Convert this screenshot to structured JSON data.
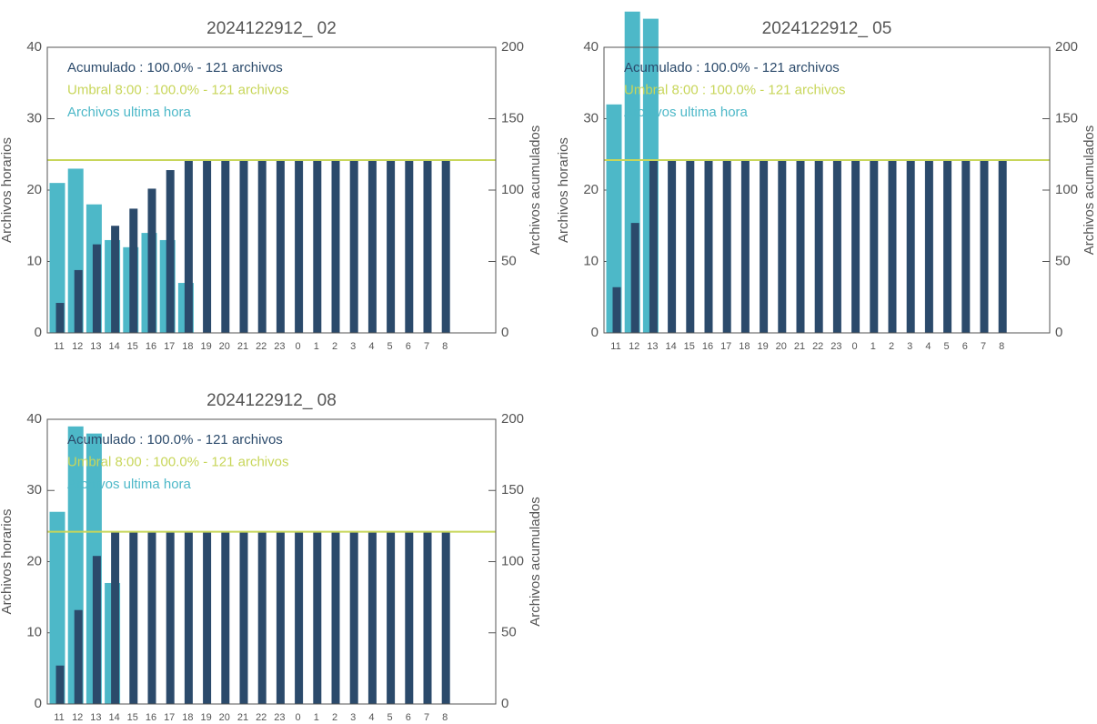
{
  "chart_data": [
    {
      "type": "bar",
      "title": "2024122912_ 02",
      "ylabel": "Archivos horarios",
      "y2label": "Archivos acumulados",
      "categories": [
        "11",
        "12",
        "13",
        "14",
        "15",
        "16",
        "17",
        "18",
        "19",
        "20",
        "21",
        "22",
        "23",
        "0",
        "1",
        "2",
        "3",
        "4",
        "5",
        "6",
        "7",
        "8"
      ],
      "series": [
        {
          "name": "Acumulado : 100.0% - 121 archivos",
          "color": "#2b4a6b",
          "axis": "y2",
          "values": [
            21,
            44,
            62,
            75,
            87,
            101,
            114,
            121,
            121,
            121,
            121,
            121,
            121,
            121,
            121,
            121,
            121,
            121,
            121,
            121,
            121,
            121
          ]
        },
        {
          "name": "Archivos ultima hora",
          "color": "#4db8c8",
          "values": [
            21,
            23,
            18,
            13,
            12,
            14,
            13,
            7,
            null,
            null,
            null,
            null,
            null,
            null,
            null,
            null,
            null,
            null,
            null,
            null,
            null,
            null
          ]
        }
      ],
      "hlines": [
        {
          "name": "Umbral 8:00 : 100.0% - 121 archivos",
          "color": "#c8d65a",
          "value": 121,
          "axis": "y2"
        }
      ],
      "ylim": [
        0,
        40
      ],
      "yticks": [
        0,
        10,
        20,
        30,
        40
      ],
      "y2lim": [
        0,
        200
      ],
      "y2ticks": [
        0,
        50,
        100,
        150,
        200
      ]
    },
    {
      "type": "bar",
      "title": "2024122912_ 05",
      "ylabel": "Archivos horarios",
      "y2label": "Archivos acumulados",
      "categories": [
        "11",
        "12",
        "13",
        "14",
        "15",
        "16",
        "17",
        "18",
        "19",
        "20",
        "21",
        "22",
        "23",
        "0",
        "1",
        "2",
        "3",
        "4",
        "5",
        "6",
        "7",
        "8"
      ],
      "series": [
        {
          "name": "Acumulado : 100.0% - 121 archivos",
          "color": "#2b4a6b",
          "axis": "y2",
          "values": [
            32,
            77,
            121,
            121,
            121,
            121,
            121,
            121,
            121,
            121,
            121,
            121,
            121,
            121,
            121,
            121,
            121,
            121,
            121,
            121,
            121,
            121
          ]
        },
        {
          "name": "Archivos ultima hora",
          "color": "#4db8c8",
          "values": [
            32,
            45,
            44,
            null,
            null,
            null,
            null,
            null,
            null,
            null,
            null,
            null,
            null,
            null,
            null,
            null,
            null,
            null,
            null,
            null,
            null,
            null
          ]
        }
      ],
      "hlines": [
        {
          "name": "Umbral 8:00 : 100.0% - 121 archivos",
          "color": "#c8d65a",
          "value": 121,
          "axis": "y2"
        }
      ],
      "ylim": [
        0,
        40
      ],
      "yticks": [
        0,
        10,
        20,
        30,
        40
      ],
      "y2lim": [
        0,
        200
      ],
      "y2ticks": [
        0,
        50,
        100,
        150,
        200
      ]
    },
    {
      "type": "bar",
      "title": "2024122912_ 08",
      "ylabel": "Archivos horarios",
      "y2label": "Archivos acumulados",
      "categories": [
        "11",
        "12",
        "13",
        "14",
        "15",
        "16",
        "17",
        "18",
        "19",
        "20",
        "21",
        "22",
        "23",
        "0",
        "1",
        "2",
        "3",
        "4",
        "5",
        "6",
        "7",
        "8"
      ],
      "series": [
        {
          "name": "Acumulado : 100.0% - 121 archivos",
          "color": "#2b4a6b",
          "axis": "y2",
          "values": [
            27,
            66,
            104,
            121,
            121,
            121,
            121,
            121,
            121,
            121,
            121,
            121,
            121,
            121,
            121,
            121,
            121,
            121,
            121,
            121,
            121,
            121
          ]
        },
        {
          "name": "Archivos ultima hora",
          "color": "#4db8c8",
          "values": [
            27,
            39,
            38,
            17,
            null,
            null,
            null,
            null,
            null,
            null,
            null,
            null,
            null,
            null,
            null,
            null,
            null,
            null,
            null,
            null,
            null,
            null
          ]
        }
      ],
      "hlines": [
        {
          "name": "Umbral 8:00 : 100.0% - 121 archivos",
          "color": "#c8d65a",
          "value": 121,
          "axis": "y2"
        }
      ],
      "ylim": [
        0,
        40
      ],
      "yticks": [
        0,
        10,
        20,
        30,
        40
      ],
      "y2lim": [
        0,
        200
      ],
      "y2ticks": [
        0,
        50,
        100,
        150,
        200
      ]
    }
  ]
}
